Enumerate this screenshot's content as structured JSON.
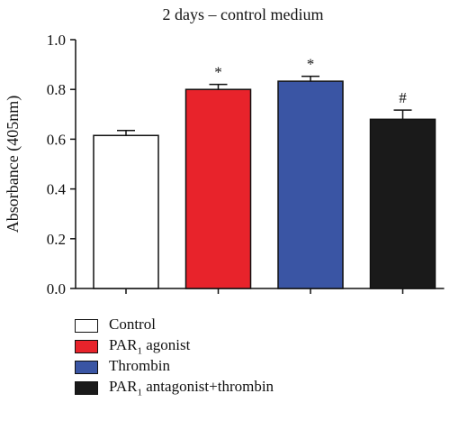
{
  "chart_data": {
    "type": "bar",
    "title": "2 days – control medium",
    "ylabel": "Absorbance (405nm)",
    "xlabel": "",
    "ylim": [
      0,
      1.0
    ],
    "yticks": [
      "0.0",
      "0.2",
      "0.4",
      "0.6",
      "0.8",
      "1.0"
    ],
    "grid": false,
    "legend_position": "bottom",
    "categories": [
      "Control",
      "PAR1 agonist",
      "Thrombin",
      "PAR1 antagonist+thrombin"
    ],
    "values": [
      0.615,
      0.8,
      0.833,
      0.68
    ],
    "errors": [
      0.02,
      0.02,
      0.02,
      0.037
    ],
    "annotations": [
      "",
      "*",
      "*",
      "#"
    ],
    "colors": [
      "#ffffff",
      "#e8232b",
      "#3a55a4",
      "#1a1a1a"
    ]
  },
  "legend": {
    "items": [
      {
        "pre": "Control",
        "sub": "",
        "post": ""
      },
      {
        "pre": "PAR",
        "sub": "1",
        "post": " agonist"
      },
      {
        "pre": "Thrombin",
        "sub": "",
        "post": ""
      },
      {
        "pre": "PAR",
        "sub": "1",
        "post": " antagonist+thrombin"
      }
    ]
  }
}
